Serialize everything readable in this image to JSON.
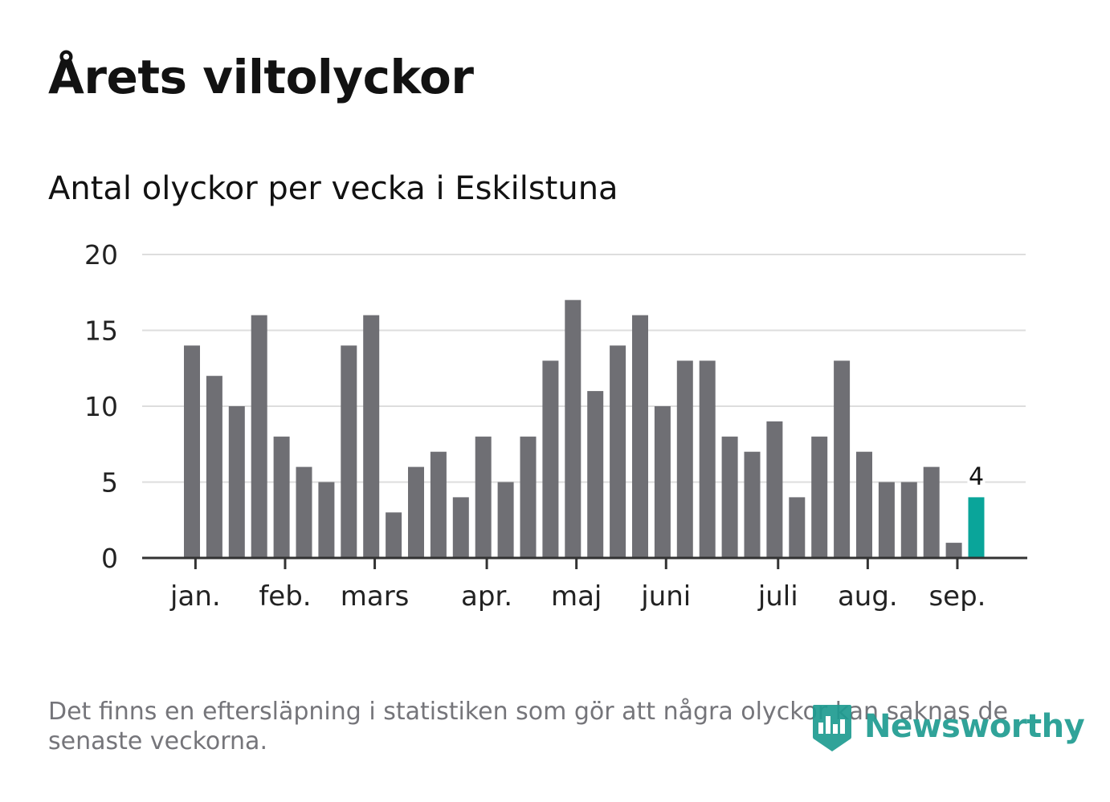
{
  "title": "Årets viltolyckor",
  "subtitle": "Antal olyckor per vecka i Eskilstuna",
  "note": "Det finns en eftersläpning i statistiken som gör att några olyckor kan saknas de senaste veckorna.",
  "brand": {
    "name": "Newsworthy",
    "icon": "newsworthy-logo-icon"
  },
  "colors": {
    "bar": "#6f6f74",
    "highlight": "#0aa59a",
    "grid": "#dddddd",
    "axis": "#333333",
    "text": "#121212",
    "note": "#75757a"
  },
  "chart_data": {
    "type": "bar",
    "title": "Årets viltolyckor",
    "subtitle": "Antal olyckor per vecka i Eskilstuna",
    "xlabel": "",
    "ylabel": "",
    "ylim": [
      0,
      20
    ],
    "yticks": [
      0,
      5,
      10,
      15,
      20
    ],
    "grid": true,
    "x_ticks": [
      {
        "label": "jan.",
        "after_bar": 0.3
      },
      {
        "label": "feb.",
        "after_bar": 4.3
      },
      {
        "label": "mars",
        "after_bar": 8.3
      },
      {
        "label": "apr.",
        "after_bar": 13.3
      },
      {
        "label": "maj",
        "after_bar": 17.3
      },
      {
        "label": "juni",
        "after_bar": 21.3
      },
      {
        "label": "juli",
        "after_bar": 26.3
      },
      {
        "label": "aug.",
        "after_bar": 30.3
      },
      {
        "label": "sep.",
        "after_bar": 34.3
      }
    ],
    "values": [
      14,
      12,
      10,
      16,
      8,
      6,
      5,
      14,
      16,
      3,
      6,
      7,
      4,
      8,
      5,
      8,
      13,
      17,
      11,
      14,
      16,
      10,
      13,
      13,
      8,
      7,
      9,
      4,
      8,
      13,
      7,
      5,
      5,
      6,
      1,
      4
    ],
    "highlight_index": 35,
    "highlight_label": "4"
  }
}
